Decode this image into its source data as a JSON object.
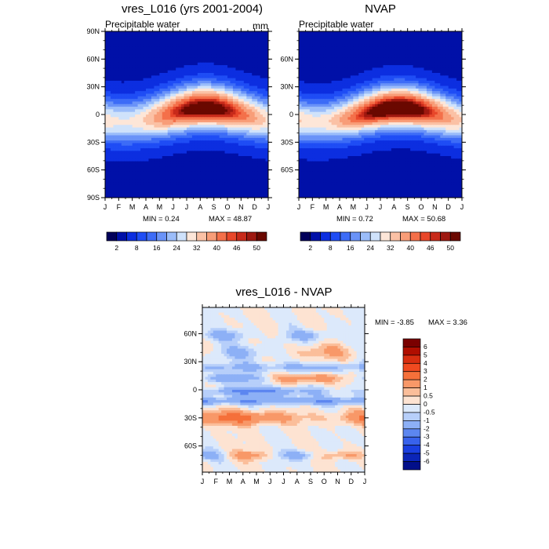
{
  "chart_data": [
    {
      "type": "heatmap",
      "title": "vres_L016 (yrs 2001-2004)",
      "subtitle": "Precipitable water",
      "units": "mm",
      "x_ticks": [
        "J",
        "F",
        "M",
        "A",
        "M",
        "J",
        "J",
        "A",
        "S",
        "O",
        "N",
        "D",
        "J"
      ],
      "y_ticks": [
        "90N",
        "60N",
        "30N",
        "0",
        "30S",
        "60S",
        "90S"
      ],
      "min_label": "MIN =   0.24",
      "max_label": "MAX =  48.87",
      "min": 0.24,
      "max": 48.87,
      "levels": [
        2,
        4,
        8,
        12,
        16,
        20,
        24,
        28,
        32,
        36,
        40,
        44,
        46,
        48,
        50
      ],
      "label_bar_ticks": [
        "2",
        "8",
        "16",
        "24",
        "32",
        "40",
        "46",
        "50"
      ]
    },
    {
      "type": "heatmap",
      "title": "NVAP",
      "subtitle": "Precipitable water",
      "x_ticks": [
        "J",
        "F",
        "M",
        "A",
        "M",
        "J",
        "J",
        "A",
        "S",
        "O",
        "N",
        "D",
        "J"
      ],
      "y_ticks": [
        "60N",
        "30N",
        "0",
        "30S",
        "60S"
      ],
      "min_label": "MIN =   0.72",
      "max_label": "MAX =  50.68",
      "min": 0.72,
      "max": 50.68,
      "levels": [
        2,
        4,
        8,
        12,
        16,
        20,
        24,
        28,
        32,
        36,
        40,
        44,
        46,
        48,
        50
      ],
      "label_bar_ticks": [
        "2",
        "8",
        "16",
        "24",
        "32",
        "40",
        "46",
        "50"
      ]
    },
    {
      "type": "heatmap",
      "title": "vres_L016 - NVAP",
      "x_ticks": [
        "J",
        "F",
        "M",
        "A",
        "M",
        "J",
        "J",
        "A",
        "S",
        "O",
        "N",
        "D",
        "J"
      ],
      "y_ticks": [
        "60N",
        "30N",
        "0",
        "30S",
        "60S"
      ],
      "min_label": "MIN =  -3.85",
      "max_label": "MAX =   3.36",
      "min": -3.85,
      "max": 3.36,
      "levels": [
        -6,
        -5,
        -4,
        -3,
        -2,
        -1,
        -0.5,
        0,
        0.5,
        1,
        2,
        3,
        4,
        5,
        6
      ],
      "label_bar_ticks": [
        "6",
        "5",
        "4",
        "3",
        "2",
        "1",
        "0.5",
        "0",
        "-0.5",
        "-1",
        "-2",
        "-3",
        "-4",
        "-5",
        "-6"
      ]
    }
  ],
  "colors": {
    "seq": [
      "#02005a",
      "#0010a8",
      "#0c2ee0",
      "#1f4df5",
      "#3d6cf7",
      "#6a93f8",
      "#9bbdfa",
      "#cfe2fb",
      "#fde6d8",
      "#fbc1a5",
      "#f89d78",
      "#f4704a",
      "#e8472a",
      "#c82a1a",
      "#9e1810",
      "#6a0800"
    ],
    "diff": [
      "#7a0000",
      "#b00e00",
      "#d82e10",
      "#f04a20",
      "#f5703a",
      "#f89868",
      "#fbbe9a",
      "#fde3d2",
      "#dce9fb",
      "#b7cffa",
      "#8db0f6",
      "#5c86f0",
      "#3862ec",
      "#1a3fe0",
      "#0b25b8",
      "#020f8a"
    ]
  }
}
